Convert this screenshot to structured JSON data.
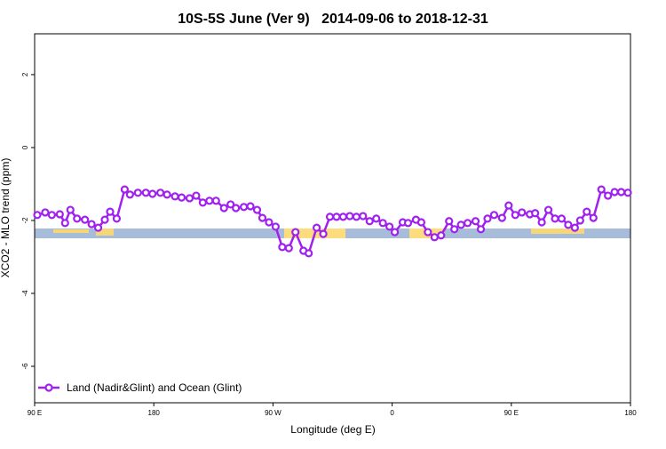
{
  "chart_data": {
    "type": "line",
    "title": "10S-5S June (Ver 9)   2014-09-06 to 2018-12-31",
    "x_label": "Longitude (deg E)",
    "y_label": "XCO2 - MLO trend (ppm)",
    "xlim": [
      90,
      540
    ],
    "ylim": [
      -7,
      3.12
    ],
    "xticks": [
      {
        "value": 90,
        "label": "90 E"
      },
      180,
      {
        "value": 270,
        "label": "90 W"
      },
      {
        "value": 360,
        "label": "0"
      },
      {
        "value": 450,
        "label": "90 E"
      },
      {
        "value": 540,
        "label": "180"
      }
    ],
    "yticks": [
      -6,
      -4,
      -2,
      0,
      2
    ],
    "legend": "bottom-left",
    "x": [
      92,
      98,
      103,
      109,
      113,
      117,
      122,
      128,
      133,
      138,
      143,
      147,
      152,
      158,
      162,
      168,
      174,
      179,
      185,
      190,
      196,
      201,
      207,
      212,
      217,
      222,
      227,
      233,
      238,
      242,
      248,
      253,
      258,
      262,
      267,
      272,
      277,
      282,
      287,
      293,
      297,
      303,
      308,
      313,
      318,
      323,
      328,
      333,
      338,
      343,
      348,
      353,
      358,
      362,
      368,
      372,
      378,
      382,
      387,
      392,
      397,
      403,
      407,
      412,
      417,
      423,
      427,
      432,
      437,
      443,
      448,
      453,
      458,
      464,
      468,
      473,
      478,
      483,
      488,
      493,
      498,
      502,
      507,
      512,
      518,
      523,
      528,
      533,
      538
    ],
    "series": [
      {
        "name": "Land (Nadir&Glint) and Ocean (Glint)",
        "color": "#a020f0",
        "values": [
          -1.85,
          -1.78,
          -1.85,
          -1.83,
          -2.07,
          -1.71,
          -1.95,
          -1.98,
          -2.1,
          -2.2,
          -1.98,
          -1.76,
          -1.95,
          -1.15,
          -1.29,
          -1.24,
          -1.24,
          -1.27,
          -1.24,
          -1.29,
          -1.34,
          -1.37,
          -1.39,
          -1.32,
          -1.51,
          -1.46,
          -1.46,
          -1.66,
          -1.56,
          -1.66,
          -1.63,
          -1.61,
          -1.71,
          -1.93,
          -2.05,
          -2.17,
          -2.73,
          -2.76,
          -2.32,
          -2.83,
          -2.9,
          -2.2,
          -2.37,
          -1.9,
          -1.9,
          -1.9,
          -1.88,
          -1.9,
          -1.88,
          -2.02,
          -1.95,
          -2.07,
          -2.17,
          -2.32,
          -2.05,
          -2.07,
          -1.98,
          -2.05,
          -2.32,
          -2.46,
          -2.41,
          -2.02,
          -2.24,
          -2.12,
          -2.07,
          -2.02,
          -2.24,
          -1.95,
          -1.85,
          -1.93,
          -1.59,
          -1.85,
          -1.78,
          -1.83,
          -1.8,
          -2.05,
          -1.71,
          -1.95,
          -1.95,
          -2.12,
          -2.2,
          -2,
          -1.76,
          -1.93,
          -1.15,
          -1.32,
          -1.22,
          -1.22,
          -1.24
        ]
      }
    ]
  }
}
